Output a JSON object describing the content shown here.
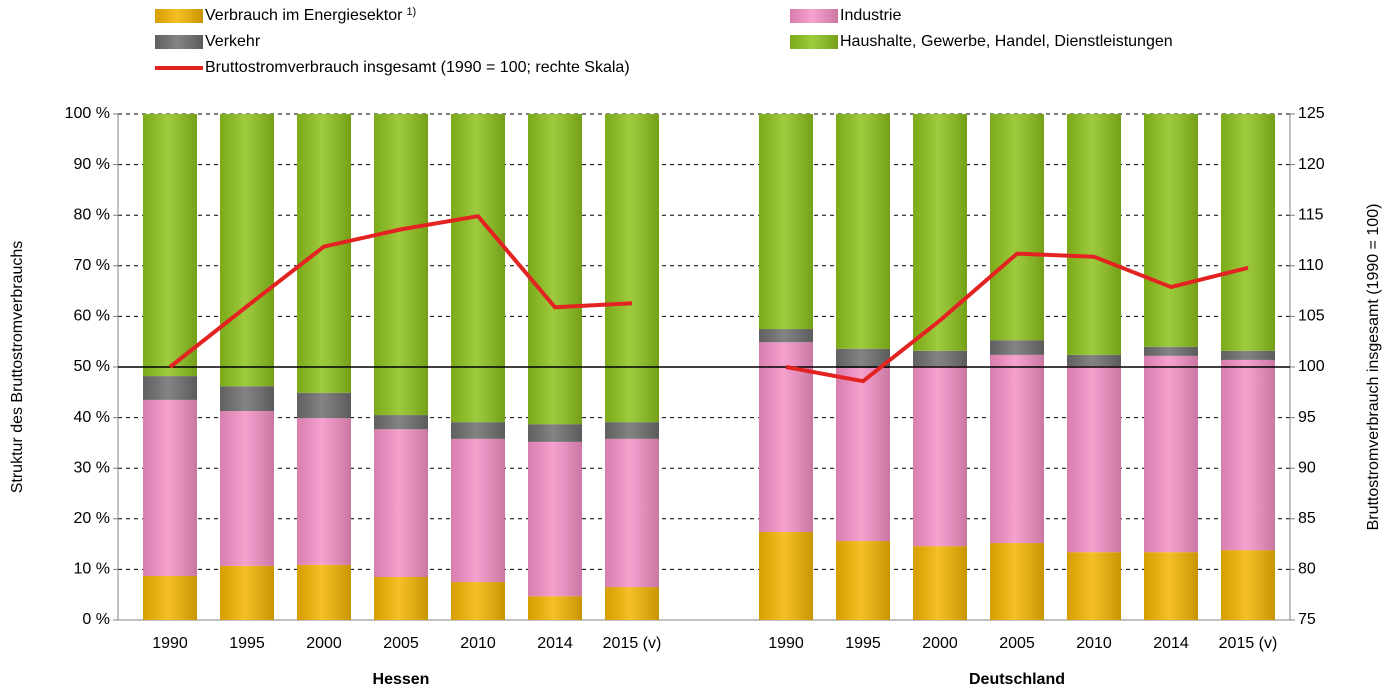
{
  "chart_data": {
    "type": "bar",
    "stacked": true,
    "categories": [
      "1990",
      "1995",
      "2000",
      "2005",
      "2010",
      "2014",
      "2015 (v)",
      null,
      "1990",
      "1995",
      "2000",
      "2005",
      "2010",
      "2014",
      "2015 (v)"
    ],
    "groups": [
      "Hessen",
      "Deutschland"
    ],
    "ylabel": "Struktur des Bruttostromverbrauchs",
    "y2label": "Bruttostromverbrauch  insgesamt (1990 = 100)",
    "footnote_marker": "1)",
    "series": [
      {
        "name": "Verbrauch im Energiesektor",
        "color": "#f4b400",
        "values": [
          8.7,
          10.7,
          10.9,
          8.5,
          7.5,
          4.7,
          6.5,
          null,
          17.4,
          15.6,
          14.6,
          15.2,
          13.4,
          13.4,
          13.8
        ]
      },
      {
        "name": "Industrie",
        "color": "#f590c6",
        "values": [
          34.8,
          30.6,
          29.0,
          29.2,
          28.3,
          30.5,
          29.3,
          null,
          37.5,
          34.2,
          35.6,
          37.2,
          36.8,
          38.8,
          37.6
        ]
      },
      {
        "name": "Verkehr",
        "color": "#6e6e6e",
        "values": [
          4.7,
          4.9,
          5.0,
          2.8,
          3.3,
          3.5,
          3.3,
          null,
          2.6,
          3.8,
          3.0,
          2.9,
          2.2,
          1.8,
          1.8
        ]
      },
      {
        "name": "Haushalte, Gewerbe, Handel, Dienstleistungen",
        "color": "#8dc21c",
        "values": [
          51.8,
          53.8,
          55.1,
          59.5,
          60.9,
          61.3,
          60.9,
          null,
          42.5,
          46.4,
          46.8,
          44.7,
          47.6,
          46.0,
          46.8
        ]
      },
      {
        "name": "Bruttostromverbrauch insgesamt (1990 = 100; rechte Skala)",
        "color": "#e32322",
        "type": "line",
        "axis": "y2",
        "values": [
          100,
          106.0,
          111.9,
          113.6,
          114.9,
          105.9,
          106.3,
          null,
          100,
          98.6,
          104.6,
          111.2,
          110.9,
          107.9,
          109.8
        ]
      }
    ],
    "ylim": [
      0,
      100
    ],
    "yticks": [
      {
        "value": 0,
        "label": "0 %"
      },
      {
        "value": 10,
        "label": "10 %"
      },
      {
        "value": 20,
        "label": "20 %"
      },
      {
        "value": 30,
        "label": "30 %"
      },
      {
        "value": 40,
        "label": "40 %"
      },
      {
        "value": 50,
        "label": "50 %"
      },
      {
        "value": 60,
        "label": "60 %"
      },
      {
        "value": 70,
        "label": "70 %"
      },
      {
        "value": 80,
        "label": "80 %"
      },
      {
        "value": 90,
        "label": "90 %"
      },
      {
        "value": 100,
        "label": "100 %"
      }
    ],
    "y2lim": [
      75,
      125
    ],
    "y2ticks": [
      75,
      80,
      85,
      90,
      95,
      100,
      105,
      110,
      115,
      120,
      125
    ],
    "grid": true,
    "legend": "top"
  }
}
